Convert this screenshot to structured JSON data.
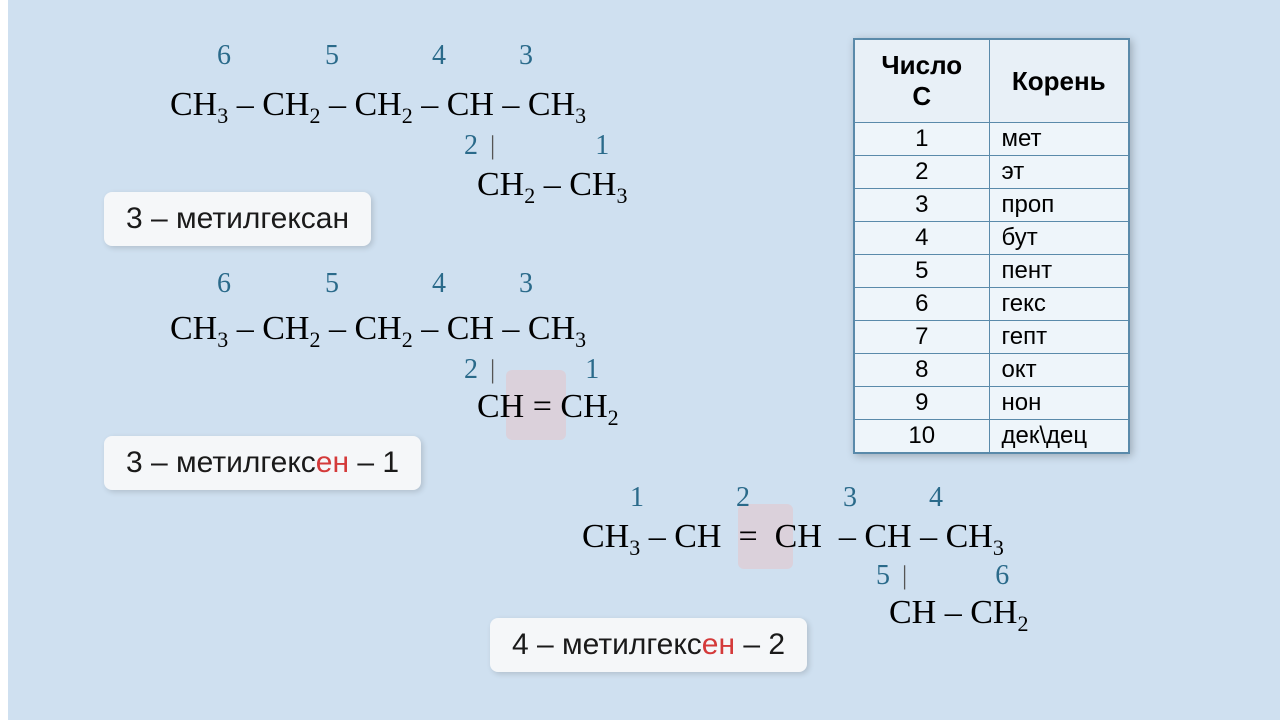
{
  "background_color": "#cfe0f0",
  "carbon_number_color": "#2a6a8a",
  "formula_fontsize": 34,
  "number_fontsize": 28,
  "label_fontsize": 30,
  "table": {
    "headers": [
      "Число С",
      "Корень"
    ],
    "rows": [
      [
        "1",
        "мет"
      ],
      [
        "2",
        "эт"
      ],
      [
        "3",
        "проп"
      ],
      [
        "4",
        "бут"
      ],
      [
        "5",
        "пент"
      ],
      [
        "6",
        "гекс"
      ],
      [
        "7",
        "гепт"
      ],
      [
        "8",
        "окт"
      ],
      [
        "9",
        "нон"
      ],
      [
        "10",
        "дек\\дец"
      ]
    ],
    "border_color": "#5a8aaa",
    "cell_bg": "#eef5fa"
  },
  "molecule1": {
    "numbers_top": [
      "6",
      "5",
      "4",
      "3"
    ],
    "chain": "CH₃ – CH₂ – CH₂ – CH – CH₃",
    "branch_numbers": [
      "2",
      "1"
    ],
    "branch": "CH₂ – CH₃",
    "name_prefix": "3 – метилгексан"
  },
  "molecule2": {
    "numbers_top": [
      "6",
      "5",
      "4",
      "3"
    ],
    "chain": "CH₃ – CH₂ – CH₂ – CH – CH₃",
    "branch_numbers": [
      "2",
      "1"
    ],
    "branch": "CH = CH₂",
    "name_parts": {
      "p1": "3 – метилгекс",
      "p2": "ен",
      "p3": " – 1"
    }
  },
  "molecule3": {
    "numbers_top": [
      "1",
      "2",
      "3",
      "4"
    ],
    "chain": "CH₃ – CH  =  CH  – CH – CH₃",
    "branch_numbers": [
      "5",
      "6"
    ],
    "branch": "CH – CH₂",
    "name_parts": {
      "p1": "4 – метилгекс",
      "p2": "ен",
      "p3": " – 2"
    }
  }
}
